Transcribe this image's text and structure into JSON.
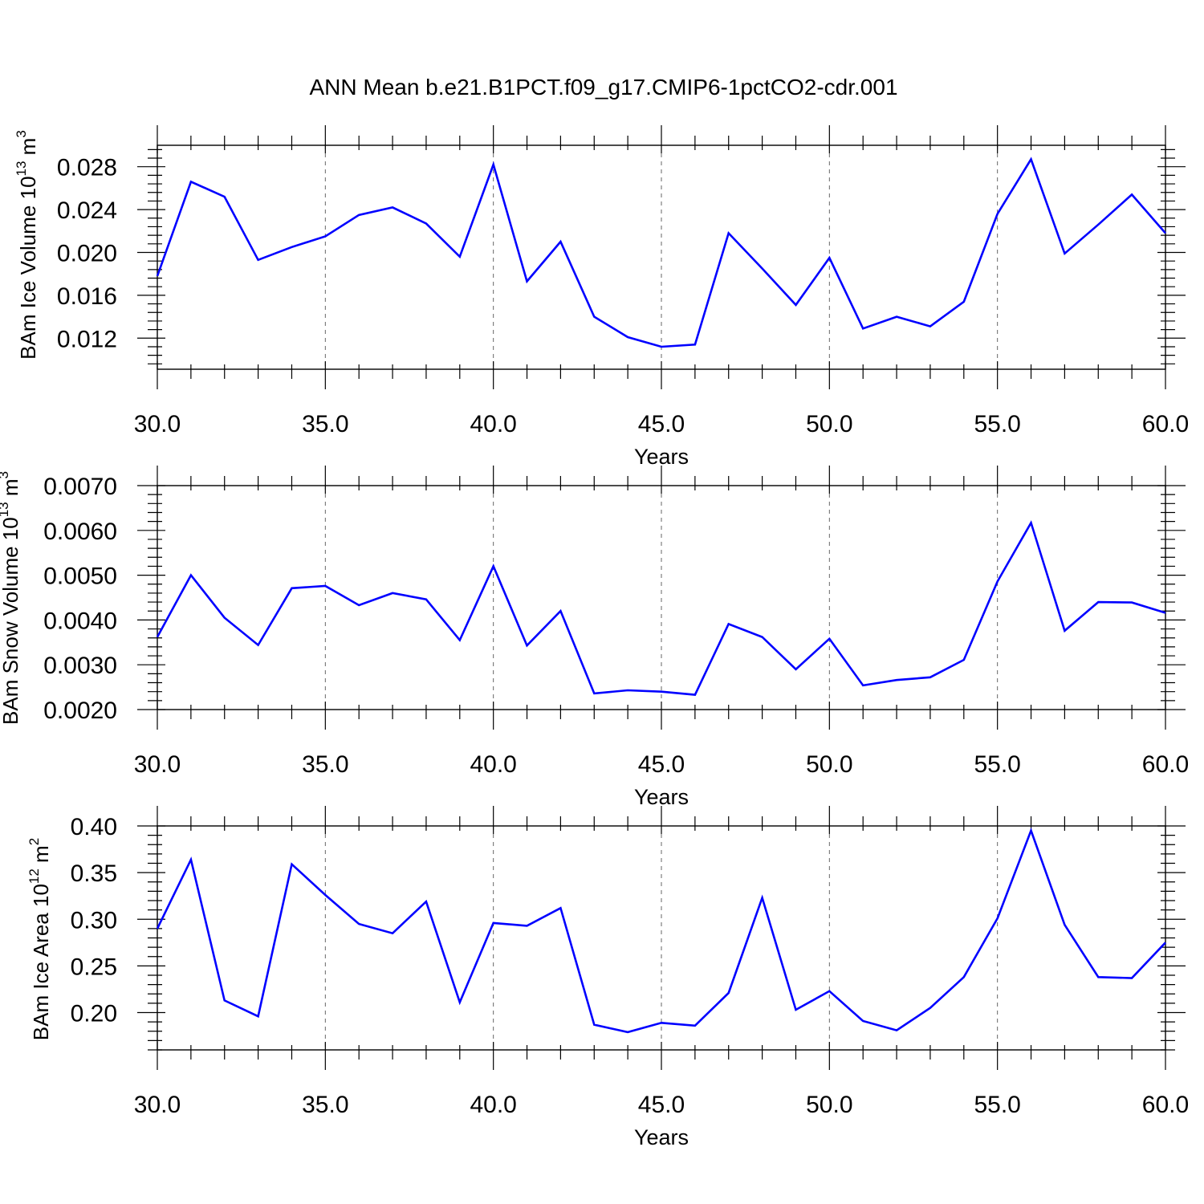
{
  "title": "ANN Mean b.e21.B1PCT.f09_g17.CMIP6-1pctCO2-cdr.001",
  "colors": {
    "series": "#0000ff",
    "axis": "#000000",
    "grid": "#666666"
  },
  "chart_data": [
    {
      "type": "line",
      "ylabel": {
        "text": "BAm Ice Volume 10",
        "exponent": "13",
        "unit": "m",
        "unit_power": "3"
      },
      "xlabel": "Years",
      "xlim": [
        30,
        60
      ],
      "ylim": [
        0.0091,
        0.03
      ],
      "xticks": [
        30,
        35,
        40,
        45,
        50,
        55,
        60
      ],
      "xticklabels": [
        "30.0",
        "35.0",
        "40.0",
        "45.0",
        "50.0",
        "55.0",
        "60.0"
      ],
      "yticks": [
        0.012,
        0.016,
        0.02,
        0.024,
        0.028
      ],
      "yticklabels": [
        "0.012",
        "0.016",
        "0.020",
        "0.024",
        "0.028"
      ],
      "grid": "vertical dashed at major x ticks",
      "x": [
        30,
        31,
        32,
        33,
        34,
        35,
        36,
        37,
        38,
        39,
        40,
        41,
        42,
        43,
        44,
        45,
        46,
        47,
        48,
        49,
        50,
        51,
        52,
        53,
        54,
        55,
        56,
        57,
        58,
        59,
        60
      ],
      "values": [
        0.0178,
        0.0266,
        0.0252,
        0.0193,
        0.0205,
        0.0215,
        0.0235,
        0.0242,
        0.0227,
        0.0196,
        0.0282,
        0.0173,
        0.021,
        0.014,
        0.0121,
        0.0112,
        0.0114,
        0.0218,
        0.0185,
        0.0151,
        0.0195,
        0.0129,
        0.014,
        0.0131,
        0.0154,
        0.0236,
        0.0287,
        0.0199,
        0.0226,
        0.0254,
        0.0218
      ]
    },
    {
      "type": "line",
      "ylabel": {
        "text": "BAm Snow Volume 10",
        "exponent": "13",
        "unit": "m",
        "unit_power": "3"
      },
      "xlabel": "Years",
      "xlim": [
        30,
        60
      ],
      "ylim": [
        0.002,
        0.007
      ],
      "xticks": [
        30,
        35,
        40,
        45,
        50,
        55,
        60
      ],
      "xticklabels": [
        "30.0",
        "35.0",
        "40.0",
        "45.0",
        "50.0",
        "55.0",
        "60.0"
      ],
      "yticks": [
        0.002,
        0.003,
        0.004,
        0.005,
        0.006,
        0.007
      ],
      "yticklabels": [
        "0.0020",
        "0.0030",
        "0.0040",
        "0.0050",
        "0.0060",
        "0.0070"
      ],
      "grid": "vertical dashed at major x ticks",
      "x": [
        30,
        31,
        32,
        33,
        34,
        35,
        36,
        37,
        38,
        39,
        40,
        41,
        42,
        43,
        44,
        45,
        46,
        47,
        48,
        49,
        50,
        51,
        52,
        53,
        54,
        55,
        56,
        57,
        58,
        59,
        60
      ],
      "values": [
        0.00362,
        0.005,
        0.00405,
        0.00344,
        0.00471,
        0.00476,
        0.00433,
        0.0046,
        0.00446,
        0.00355,
        0.0052,
        0.00343,
        0.0042,
        0.00236,
        0.00243,
        0.0024,
        0.00233,
        0.00391,
        0.00362,
        0.0029,
        0.00358,
        0.00254,
        0.00266,
        0.00272,
        0.00311,
        0.00486,
        0.00617,
        0.00376,
        0.0044,
        0.00439,
        0.00416
      ]
    },
    {
      "type": "line",
      "ylabel": {
        "text": "BAm Ice Area 10",
        "exponent": "12",
        "unit": "m",
        "unit_power": "2"
      },
      "xlabel": "Years",
      "xlim": [
        30,
        60
      ],
      "ylim": [
        0.16,
        0.4
      ],
      "xticks": [
        30,
        35,
        40,
        45,
        50,
        55,
        60
      ],
      "xticklabels": [
        "30.0",
        "35.0",
        "40.0",
        "45.0",
        "50.0",
        "55.0",
        "60.0"
      ],
      "yticks": [
        0.2,
        0.25,
        0.3,
        0.35,
        0.4
      ],
      "yticklabels": [
        "0.20",
        "0.25",
        "0.30",
        "0.35",
        "0.40"
      ],
      "grid": "vertical dashed at major x ticks",
      "x": [
        30,
        31,
        32,
        33,
        34,
        35,
        36,
        37,
        38,
        39,
        40,
        41,
        42,
        43,
        44,
        45,
        46,
        47,
        48,
        49,
        50,
        51,
        52,
        53,
        54,
        55,
        56,
        57,
        58,
        59,
        60
      ],
      "values": [
        0.29,
        0.364,
        0.213,
        0.196,
        0.359,
        0.326,
        0.295,
        0.285,
        0.319,
        0.211,
        0.296,
        0.293,
        0.312,
        0.187,
        0.179,
        0.189,
        0.186,
        0.221,
        0.323,
        0.203,
        0.223,
        0.191,
        0.181,
        0.205,
        0.238,
        0.301,
        0.395,
        0.294,
        0.238,
        0.237,
        0.275
      ]
    }
  ]
}
